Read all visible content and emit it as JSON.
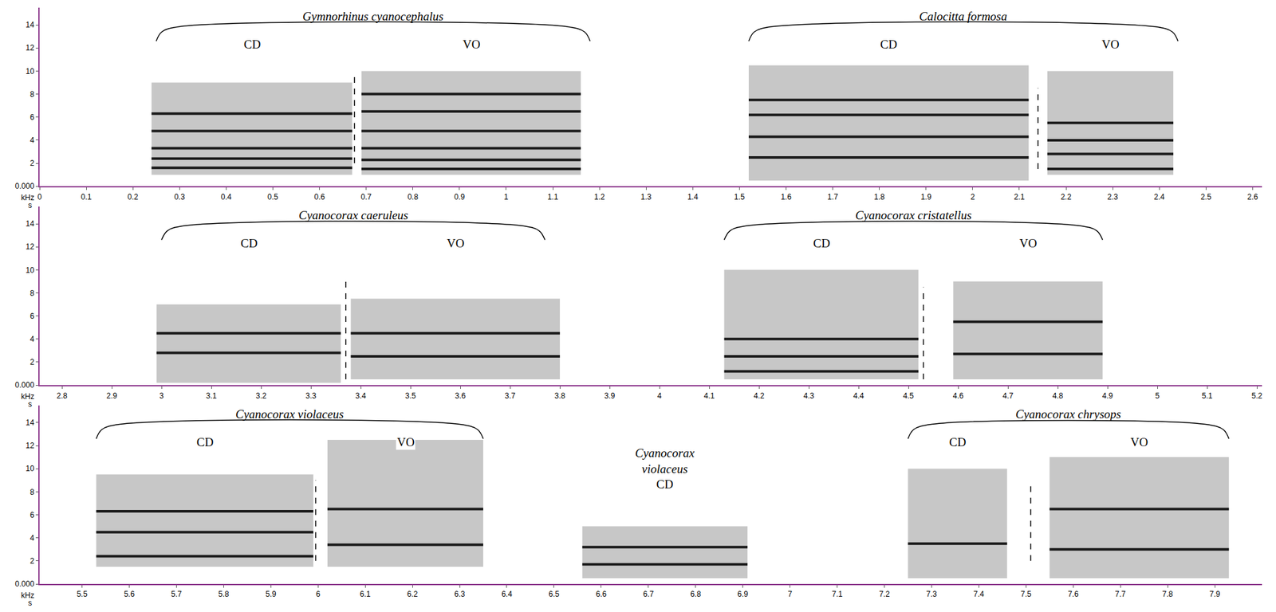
{
  "chart_data": [
    {
      "type": "spectrogram",
      "x_label": "s",
      "y_label": "kHz",
      "xlim": [
        0,
        2.62
      ],
      "xticks": [
        0,
        0.1,
        0.2,
        0.3,
        0.4,
        0.5,
        0.6,
        0.7,
        0.8,
        0.9,
        1,
        1.1,
        1.2,
        1.3,
        1.4,
        1.5,
        1.6,
        1.7,
        1.8,
        1.9,
        2,
        2.1,
        2.2,
        2.3,
        2.4,
        2.5,
        2.6
      ],
      "ylim": [
        0,
        15.5
      ],
      "yticks": [
        {
          "value": 0,
          "label": "0.000"
        },
        2,
        4,
        6,
        8,
        10,
        12,
        14
      ],
      "groups": [
        {
          "species": "Gymnorhinus cyanocephalus",
          "bracket": [
            0.25,
            1.18
          ],
          "segments": [
            {
              "label": "CD",
              "start": 0.24,
              "end": 0.67,
              "f_low": 1,
              "f_high": 9,
              "bands": [
                1.6,
                2.4,
                3.3,
                4.8,
                6.3
              ]
            },
            {
              "label": "VO",
              "start": 0.69,
              "end": 1.16,
              "f_low": 1,
              "f_high": 10,
              "bands": [
                1.5,
                2.3,
                3.3,
                4.8,
                6.5,
                8
              ]
            }
          ],
          "divider": {
            "x": 0.675,
            "f_low": 2,
            "f_high": 9.5
          }
        },
        {
          "species": "Calocitta formosa",
          "bracket": [
            1.52,
            2.44
          ],
          "segments": [
            {
              "label": "CD",
              "start": 1.52,
              "end": 2.12,
              "f_low": 0.5,
              "f_high": 10.5,
              "bands": [
                2.5,
                4.3,
                6.2,
                7.5
              ]
            },
            {
              "label": "VO",
              "start": 2.16,
              "end": 2.43,
              "f_low": 1,
              "f_high": 10,
              "bands": [
                1.5,
                2.8,
                4,
                5.5
              ]
            }
          ],
          "divider": {
            "x": 2.14,
            "f_low": 1.5,
            "f_high": 8.5
          }
        }
      ]
    },
    {
      "type": "spectrogram",
      "x_label": "s",
      "y_label": "kHz",
      "xlim": [
        2.755,
        5.21
      ],
      "xticks": [
        2.8,
        2.9,
        3,
        3.1,
        3.2,
        3.3,
        3.4,
        3.5,
        3.6,
        3.7,
        3.8,
        3.9,
        4,
        4.1,
        4.2,
        4.3,
        4.4,
        4.5,
        4.6,
        4.7,
        4.8,
        4.9,
        5,
        5.1,
        5.2
      ],
      "ylim": [
        0,
        15.5
      ],
      "yticks": [
        {
          "value": 0,
          "label": "0.000"
        },
        2,
        4,
        6,
        8,
        10,
        12,
        14
      ],
      "groups": [
        {
          "species": "Cyanocorax caeruleus",
          "bracket": [
            3.0,
            3.77
          ],
          "segments": [
            {
              "label": "CD",
              "start": 2.99,
              "end": 3.36,
              "f_low": 0.2,
              "f_high": 7,
              "bands": [
                2.8,
                4.5
              ]
            },
            {
              "label": "VO",
              "start": 3.38,
              "end": 3.8,
              "f_low": 0.5,
              "f_high": 7.5,
              "bands": [
                2.5,
                4.5
              ]
            }
          ],
          "divider": {
            "x": 3.37,
            "f_low": 0.5,
            "f_high": 9
          }
        },
        {
          "species": "Cyanocorax cristatellus",
          "bracket": [
            4.13,
            4.89
          ],
          "segments": [
            {
              "label": "CD",
              "start": 4.13,
              "end": 4.52,
              "f_low": 0.5,
              "f_high": 10,
              "bands": [
                1.2,
                2.5,
                4
              ]
            },
            {
              "label": "VO",
              "start": 4.59,
              "end": 4.89,
              "f_low": 0.5,
              "f_high": 9,
              "bands": [
                2.7,
                5.5
              ]
            }
          ],
          "divider": {
            "x": 4.53,
            "f_low": 0.5,
            "f_high": 8.5
          }
        }
      ]
    },
    {
      "type": "spectrogram",
      "x_label": "s",
      "y_label": "kHz",
      "xlim": [
        5.41,
        8.0
      ],
      "xticks": [
        5.5,
        5.6,
        5.7,
        5.8,
        5.9,
        6,
        6.1,
        6.2,
        6.3,
        6.4,
        6.5,
        6.6,
        6.7,
        6.8,
        6.9,
        7,
        7.1,
        7.2,
        7.3,
        7.4,
        7.5,
        7.6,
        7.7,
        7.8,
        7.9
      ],
      "ylim": [
        0,
        15.5
      ],
      "yticks": [
        {
          "value": 0,
          "label": "0.000"
        },
        2,
        4,
        6,
        8,
        10,
        12,
        14
      ],
      "groups": [
        {
          "species": "Cyanocorax violaceus",
          "bracket": [
            5.53,
            6.35
          ],
          "segments": [
            {
              "label": "CD",
              "start": 5.53,
              "end": 5.99,
              "f_low": 1.5,
              "f_high": 9.5,
              "bands": [
                2.4,
                4.5,
                6.3
              ]
            },
            {
              "label": "VO",
              "start": 6.02,
              "end": 6.35,
              "f_low": 1.5,
              "f_high": 12.5,
              "bands": [
                3.4,
                6.5
              ]
            }
          ],
          "divider": {
            "x": 5.995,
            "f_low": 2,
            "f_high": 9
          }
        },
        {
          "species": "Cyanocorax violaceus",
          "segments": [
            {
              "label": "CD",
              "start": 6.56,
              "end": 6.91,
              "f_low": 0.5,
              "f_high": 5,
              "bands": [
                1.7,
                3.2
              ]
            }
          ]
        },
        {
          "species": "Cyanocorax chrysops",
          "bracket": [
            7.25,
            7.93
          ],
          "segments": [
            {
              "label": "CD",
              "start": 7.25,
              "end": 7.46,
              "f_low": 0.5,
              "f_high": 10,
              "bands": [
                3.5
              ]
            },
            {
              "label": "VO",
              "start": 7.55,
              "end": 7.93,
              "f_low": 0.5,
              "f_high": 11,
              "bands": [
                3,
                6.5
              ]
            }
          ],
          "divider": {
            "x": 7.51,
            "f_low": 2,
            "f_high": 8.5
          }
        }
      ]
    }
  ]
}
